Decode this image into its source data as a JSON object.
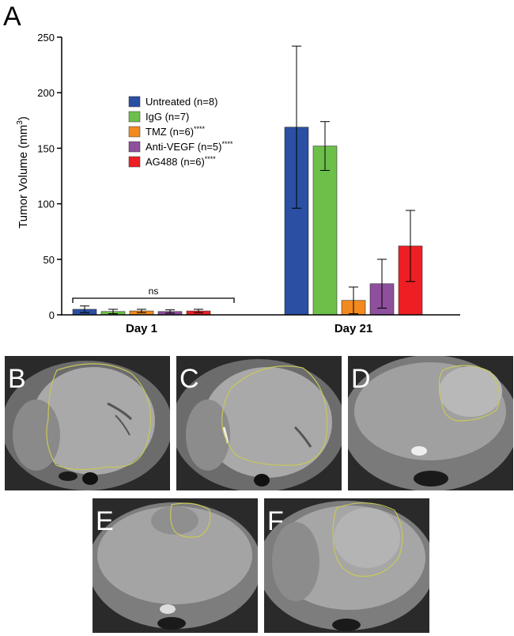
{
  "panel_labels": [
    "A",
    "B",
    "C",
    "D",
    "E",
    "F"
  ],
  "colors": {
    "untreated": "#2a4fa3",
    "igg": "#6cc04a",
    "tmz": "#f28a1f",
    "anti_vegf": "#8e4f9d",
    "ag488": "#ed1f24",
    "tumor_outline": "#c8c85a"
  },
  "chart_data": {
    "type": "bar",
    "ylabel_main": "Tumor Volume (mm",
    "ylabel_sup": "3",
    "ylabel_close": ")",
    "ylim": [
      0,
      250
    ],
    "yticks": [
      0,
      50,
      100,
      150,
      200,
      250
    ],
    "categories": [
      "Day 1",
      "Day 21"
    ],
    "legend_position": "top-left",
    "series": [
      {
        "name": "Untreated (n=8)",
        "sig": "",
        "color_key": "untreated",
        "values": [
          5,
          169
        ],
        "errors": [
          3,
          73
        ]
      },
      {
        "name": "IgG (n=7)",
        "sig": "",
        "color_key": "igg",
        "values": [
          3,
          152
        ],
        "errors": [
          2,
          22
        ]
      },
      {
        "name": "TMZ (n=6)",
        "sig": "****",
        "color_key": "tmz",
        "values": [
          3.5,
          13
        ],
        "errors": [
          1.5,
          12
        ]
      },
      {
        "name": "Anti-VEGF (n=5)",
        "sig": "****",
        "color_key": "anti_vegf",
        "values": [
          3,
          28
        ],
        "errors": [
          1.5,
          22
        ]
      },
      {
        "name": "AG488 (n=6)",
        "sig": "****",
        "color_key": "ag488",
        "values": [
          3.5,
          62
        ],
        "errors": [
          1.5,
          32
        ]
      }
    ],
    "annotations": [
      {
        "text": "ns",
        "category": "Day 1"
      }
    ]
  },
  "mri_panels": [
    {
      "label": "B",
      "outline": "large"
    },
    {
      "label": "C",
      "outline": "large"
    },
    {
      "label": "D",
      "outline": "right"
    },
    {
      "label": "E",
      "outline": "top-small"
    },
    {
      "label": "F",
      "outline": "right-medium"
    }
  ]
}
